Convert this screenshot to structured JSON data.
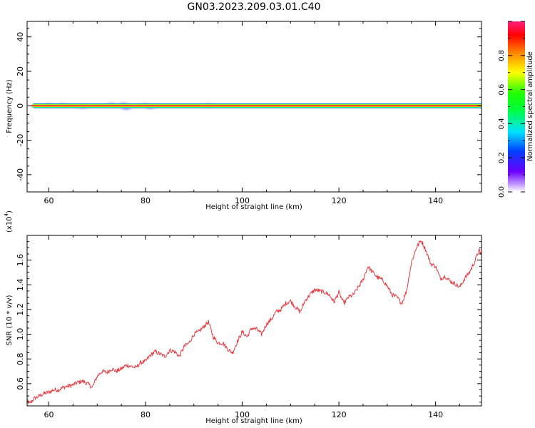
{
  "title": "GN03.2023.209.03.01.C40",
  "chart_data": [
    {
      "type": "heatmap",
      "xlabel": "Height of straight line (km)",
      "ylabel": "Frequency (Hz)",
      "xlim": [
        55.5,
        149.5
      ],
      "ylim": [
        -50,
        49
      ],
      "xticks": [
        60,
        80,
        100,
        120,
        140
      ],
      "yticks": [
        40,
        20,
        0,
        -20,
        -40
      ],
      "ytick_labels": [
        "40",
        "20",
        "0",
        "-20",
        "-40"
      ],
      "band": {
        "start_km": 56.5,
        "end_km": 149.5,
        "freq_hz": 0,
        "half_width_hz": 1.5
      },
      "weak_blobs": [
        {
          "x": 60,
          "y": 0.3
        },
        {
          "x": 63,
          "y": 0.2
        },
        {
          "x": 67,
          "y": -0.4
        },
        {
          "x": 73,
          "y": 0.5
        },
        {
          "x": 75.5,
          "y": 0.6
        },
        {
          "x": 76,
          "y": -1.2
        },
        {
          "x": 80,
          "y": 0.3
        },
        {
          "x": 81,
          "y": -0.6
        },
        {
          "x": 93,
          "y": 0.2
        }
      ],
      "colorbar": {
        "label": "Normalized spectral amplitude",
        "ticks": [
          0.0,
          0.2,
          0.4,
          0.6,
          0.8
        ],
        "tick_labels": [
          "0.0",
          "0.2",
          "0.4",
          "0.6",
          "0.8"
        ],
        "range": [
          0,
          1
        ]
      }
    },
    {
      "type": "line",
      "xlabel": "Height of straight line (km)",
      "ylabel": "SNR (10 * v/v)",
      "exponent_label": "(x10",
      "exponent_sup": "4",
      "exponent_close": ")",
      "xlim": [
        55.5,
        149.5
      ],
      "ylim": [
        0.42,
        1.8
      ],
      "xticks": [
        60,
        80,
        100,
        120,
        140
      ],
      "yticks": [
        0.6,
        0.8,
        1.0,
        1.2,
        1.4,
        1.6
      ],
      "ytick_labels": [
        "0.6",
        "0.8",
        "1.0",
        "1.2",
        "1.4",
        "1.6"
      ],
      "series": [
        {
          "color": "#e8383d",
          "x": [
            55.5,
            56,
            57,
            58,
            59,
            60,
            61,
            62,
            63,
            64,
            65,
            66,
            67,
            68,
            69,
            70,
            71,
            72,
            73,
            74,
            75,
            76,
            77,
            78,
            79,
            80,
            81,
            82,
            83,
            84,
            85,
            86,
            87,
            88,
            89,
            90,
            91,
            92,
            93,
            94,
            95,
            96,
            97,
            98,
            99,
            100,
            101,
            102,
            103,
            104,
            105,
            106,
            107,
            108,
            109,
            110,
            111,
            112,
            113,
            114,
            115,
            116,
            117,
            118,
            119,
            120,
            121,
            122,
            123,
            124,
            125,
            126,
            127,
            128,
            129,
            130,
            131,
            132,
            133,
            134,
            135,
            136,
            137,
            138,
            139,
            140,
            141,
            142,
            143,
            144,
            145,
            146,
            147,
            148,
            149,
            149.5
          ],
          "y": [
            0.46,
            0.44,
            0.48,
            0.5,
            0.52,
            0.53,
            0.55,
            0.55,
            0.57,
            0.58,
            0.59,
            0.61,
            0.62,
            0.6,
            0.57,
            0.66,
            0.7,
            0.69,
            0.72,
            0.7,
            0.72,
            0.75,
            0.74,
            0.73,
            0.77,
            0.78,
            0.83,
            0.86,
            0.84,
            0.82,
            0.87,
            0.86,
            0.82,
            0.9,
            0.93,
            1.0,
            1.02,
            1.06,
            1.1,
            0.98,
            0.93,
            0.93,
            0.88,
            0.85,
            0.94,
            1.02,
            0.98,
            1.05,
            1.04,
            1.0,
            1.08,
            1.12,
            1.18,
            1.2,
            1.25,
            1.27,
            1.22,
            1.18,
            1.27,
            1.32,
            1.36,
            1.35,
            1.34,
            1.32,
            1.26,
            1.34,
            1.25,
            1.3,
            1.32,
            1.38,
            1.44,
            1.55,
            1.5,
            1.46,
            1.44,
            1.39,
            1.32,
            1.3,
            1.25,
            1.35,
            1.58,
            1.7,
            1.76,
            1.68,
            1.57,
            1.55,
            1.45,
            1.47,
            1.43,
            1.41,
            1.38,
            1.45,
            1.5,
            1.58,
            1.68,
            1.64
          ]
        }
      ]
    }
  ]
}
